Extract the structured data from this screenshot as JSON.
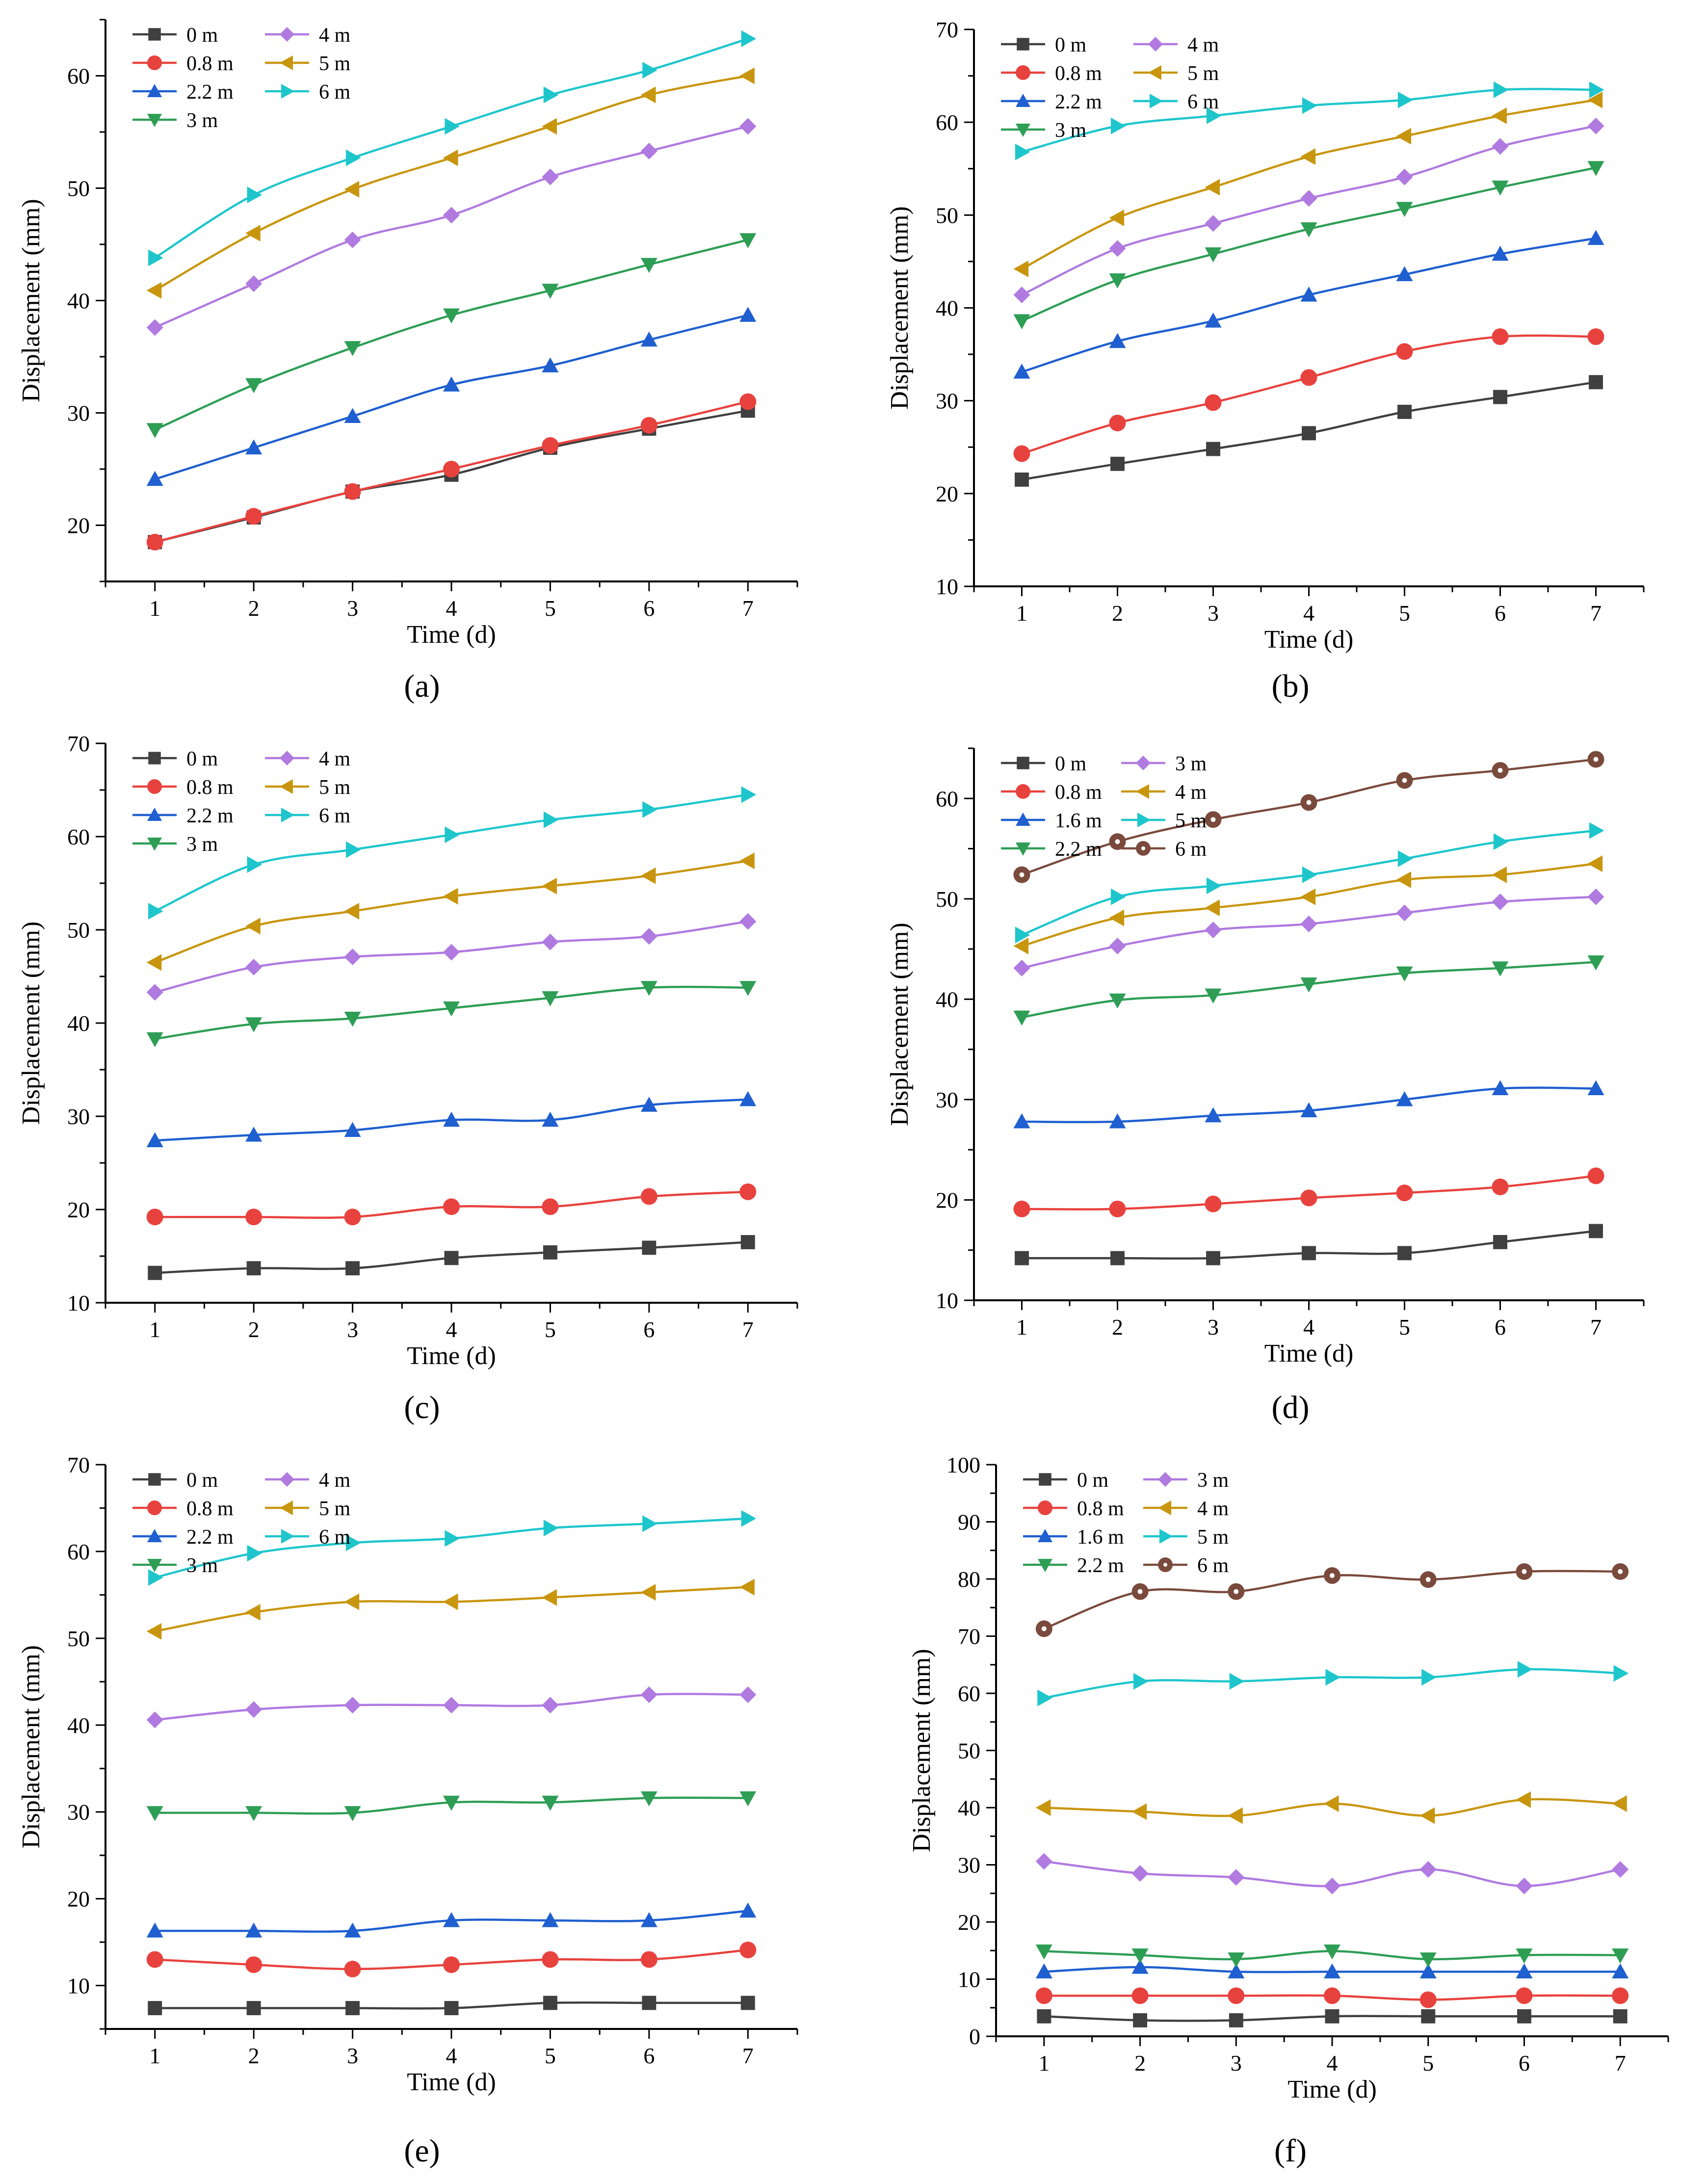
{
  "figure": {
    "panels": [
      "a",
      "b",
      "c",
      "d",
      "e",
      "f"
    ]
  },
  "chart_data": [
    {
      "type": "line",
      "panel": "a",
      "panel_label": "(a)",
      "xlabel": "Time (d)",
      "ylabel": "Displacement (mm)",
      "x": [
        1,
        2,
        3,
        4,
        5,
        6,
        7
      ],
      "xlim": [
        0.5,
        7.5
      ],
      "ylim": [
        15,
        65
      ],
      "xticks": [
        1,
        2,
        3,
        4,
        5,
        6,
        7
      ],
      "yticks": [
        20,
        30,
        40,
        50,
        60
      ],
      "legend_position": "top-left",
      "series": [
        {
          "name": "0 m",
          "color": "#404040",
          "marker": "square",
          "values": [
            18.5,
            20.7,
            23.0,
            24.5,
            26.9,
            28.6,
            30.2
          ]
        },
        {
          "name": "0.8 m",
          "color": "#e8423e",
          "marker": "circle",
          "values": [
            18.5,
            20.8,
            23.0,
            25.0,
            27.1,
            28.9,
            31.0
          ]
        },
        {
          "name": "2.2 m",
          "color": "#1f5fd0",
          "marker": "triangle-up",
          "values": [
            24.1,
            26.9,
            29.7,
            32.5,
            34.2,
            36.5,
            38.7
          ]
        },
        {
          "name": "3 m",
          "color": "#2e9e55",
          "marker": "triangle-down",
          "values": [
            28.5,
            32.5,
            35.8,
            38.7,
            40.9,
            43.2,
            45.4
          ]
        },
        {
          "name": "4 m",
          "color": "#b07ae0",
          "marker": "diamond",
          "values": [
            37.6,
            41.5,
            45.4,
            47.6,
            51.0,
            53.3,
            55.5
          ]
        },
        {
          "name": "5 m",
          "color": "#c8960e",
          "marker": "triangle-left",
          "values": [
            40.9,
            46.0,
            49.9,
            52.7,
            55.5,
            58.3,
            60.0
          ]
        },
        {
          "name": "6 m",
          "color": "#1ec6cc",
          "marker": "triangle-right",
          "values": [
            43.8,
            49.4,
            52.7,
            55.5,
            58.3,
            60.5,
            63.3
          ]
        }
      ]
    },
    {
      "type": "line",
      "panel": "b",
      "panel_label": "(b)",
      "xlabel": "Time (d)",
      "ylabel": "Displacement (mm)",
      "x": [
        1,
        2,
        3,
        4,
        5,
        6,
        7
      ],
      "xlim": [
        0.5,
        7.5
      ],
      "ylim": [
        10,
        70
      ],
      "xticks": [
        1,
        2,
        3,
        4,
        5,
        6,
        7
      ],
      "yticks": [
        10,
        20,
        30,
        40,
        50,
        60,
        70
      ],
      "legend_position": "top-left",
      "series": [
        {
          "name": "0 m",
          "color": "#404040",
          "marker": "square",
          "values": [
            21.5,
            23.2,
            24.8,
            26.5,
            28.8,
            30.4,
            32.0
          ]
        },
        {
          "name": "0.8 m",
          "color": "#e8423e",
          "marker": "circle",
          "values": [
            24.3,
            27.6,
            29.8,
            32.5,
            35.3,
            36.9,
            36.9
          ]
        },
        {
          "name": "2.2 m",
          "color": "#1f5fd0",
          "marker": "triangle-up",
          "values": [
            33.1,
            36.4,
            38.6,
            41.4,
            43.6,
            45.8,
            47.5
          ]
        },
        {
          "name": "3 m",
          "color": "#2e9e55",
          "marker": "triangle-down",
          "values": [
            38.6,
            43.0,
            45.8,
            48.5,
            50.7,
            53.0,
            55.1
          ]
        },
        {
          "name": "4 m",
          "color": "#b07ae0",
          "marker": "diamond",
          "values": [
            41.4,
            46.4,
            49.1,
            51.8,
            54.1,
            57.4,
            59.6
          ]
        },
        {
          "name": "5 m",
          "color": "#c8960e",
          "marker": "triangle-left",
          "values": [
            44.2,
            49.7,
            53.0,
            56.3,
            58.5,
            60.7,
            62.4
          ]
        },
        {
          "name": "6 m",
          "color": "#1ec6cc",
          "marker": "triangle-right",
          "values": [
            56.8,
            59.6,
            60.7,
            61.8,
            62.4,
            63.5,
            63.5
          ]
        }
      ]
    },
    {
      "type": "line",
      "panel": "c",
      "panel_label": "(c)",
      "xlabel": "Time (d)",
      "ylabel": "Displacement (mm)",
      "x": [
        1,
        2,
        3,
        4,
        5,
        6,
        7
      ],
      "xlim": [
        0.5,
        7.5
      ],
      "ylim": [
        10,
        70
      ],
      "xticks": [
        1,
        2,
        3,
        4,
        5,
        6,
        7
      ],
      "yticks": [
        10,
        20,
        30,
        40,
        50,
        60,
        70
      ],
      "legend_position": "top-left",
      "series": [
        {
          "name": "0 m",
          "color": "#404040",
          "marker": "square",
          "values": [
            13.2,
            13.7,
            13.7,
            14.8,
            15.4,
            15.9,
            16.5
          ]
        },
        {
          "name": "0.8 m",
          "color": "#e8423e",
          "marker": "circle",
          "values": [
            19.2,
            19.2,
            19.2,
            20.3,
            20.3,
            21.4,
            21.9
          ]
        },
        {
          "name": "2.2 m",
          "color": "#1f5fd0",
          "marker": "triangle-up",
          "values": [
            27.4,
            28.0,
            28.5,
            29.6,
            29.6,
            31.2,
            31.8
          ]
        },
        {
          "name": "3 m",
          "color": "#2e9e55",
          "marker": "triangle-down",
          "values": [
            38.3,
            39.9,
            40.5,
            41.6,
            42.7,
            43.8,
            43.8
          ]
        },
        {
          "name": "4 m",
          "color": "#b07ae0",
          "marker": "diamond",
          "values": [
            43.3,
            46.0,
            47.1,
            47.6,
            48.7,
            49.3,
            50.9
          ]
        },
        {
          "name": "5 m",
          "color": "#c8960e",
          "marker": "triangle-left",
          "values": [
            46.5,
            50.4,
            52.0,
            53.6,
            54.7,
            55.8,
            57.4
          ]
        },
        {
          "name": "6 m",
          "color": "#1ec6cc",
          "marker": "triangle-right",
          "values": [
            52.0,
            57.0,
            58.6,
            60.2,
            61.8,
            62.9,
            64.5
          ]
        }
      ]
    },
    {
      "type": "line",
      "panel": "d",
      "panel_label": "(d)",
      "xlabel": "Time (d)",
      "ylabel": "Displacement (mm)",
      "x": [
        1,
        2,
        3,
        4,
        5,
        6,
        7
      ],
      "xlim": [
        0.5,
        7.5
      ],
      "ylim": [
        10,
        65
      ],
      "xticks": [
        1,
        2,
        3,
        4,
        5,
        6,
        7
      ],
      "yticks": [
        10,
        20,
        30,
        40,
        50,
        60
      ],
      "legend_position": "top-left",
      "series": [
        {
          "name": "0 m",
          "color": "#404040",
          "marker": "square",
          "values": [
            14.2,
            14.2,
            14.2,
            14.7,
            14.7,
            15.8,
            16.9
          ]
        },
        {
          "name": "0.8 m",
          "color": "#e8423e",
          "marker": "circle",
          "values": [
            19.1,
            19.1,
            19.6,
            20.2,
            20.7,
            21.3,
            22.4
          ]
        },
        {
          "name": "1.6 m",
          "color": "#1f5fd0",
          "marker": "triangle-up",
          "values": [
            27.8,
            27.8,
            28.4,
            28.9,
            30.0,
            31.1,
            31.1
          ]
        },
        {
          "name": "2.2 m",
          "color": "#2e9e55",
          "marker": "triangle-down",
          "values": [
            38.2,
            39.9,
            40.4,
            41.5,
            42.6,
            43.1,
            43.7
          ]
        },
        {
          "name": "3 m",
          "color": "#b07ae0",
          "marker": "diamond",
          "values": [
            43.1,
            45.3,
            46.9,
            47.5,
            48.6,
            49.7,
            50.2
          ]
        },
        {
          "name": "4 m",
          "color": "#c8960e",
          "marker": "triangle-left",
          "values": [
            45.3,
            48.1,
            49.1,
            50.2,
            51.9,
            52.4,
            53.5
          ]
        },
        {
          "name": "5 m",
          "color": "#1ec6cc",
          "marker": "triangle-right",
          "values": [
            46.4,
            50.2,
            51.3,
            52.4,
            54.0,
            55.7,
            56.8
          ]
        },
        {
          "name": "6 m",
          "color": "#7a4a3c",
          "marker": "circle-dot",
          "values": [
            52.4,
            55.7,
            57.9,
            59.6,
            61.8,
            62.8,
            63.9
          ]
        }
      ]
    },
    {
      "type": "line",
      "panel": "e",
      "panel_label": "(e)",
      "xlabel": "Time (d)",
      "ylabel": "Displacement (mm)",
      "x": [
        1,
        2,
        3,
        4,
        5,
        6,
        7
      ],
      "xlim": [
        0.5,
        7.5
      ],
      "ylim": [
        5,
        70
      ],
      "xticks": [
        1,
        2,
        3,
        4,
        5,
        6,
        7
      ],
      "yticks": [
        10,
        20,
        30,
        40,
        50,
        60,
        70
      ],
      "legend_position": "top-left",
      "series": [
        {
          "name": "0 m",
          "color": "#404040",
          "marker": "square",
          "values": [
            7.4,
            7.4,
            7.4,
            7.4,
            8.0,
            8.0,
            8.0
          ]
        },
        {
          "name": "0.8 m",
          "color": "#e8423e",
          "marker": "circle",
          "values": [
            13.0,
            12.4,
            11.9,
            12.4,
            13.0,
            13.0,
            14.1
          ]
        },
        {
          "name": "2.2 m",
          "color": "#1f5fd0",
          "marker": "triangle-up",
          "values": [
            16.3,
            16.3,
            16.3,
            17.5,
            17.5,
            17.5,
            18.6
          ]
        },
        {
          "name": "3 m",
          "color": "#2e9e55",
          "marker": "triangle-down",
          "values": [
            29.9,
            29.9,
            29.9,
            31.1,
            31.1,
            31.6,
            31.6
          ]
        },
        {
          "name": "4 m",
          "color": "#b07ae0",
          "marker": "diamond",
          "values": [
            40.6,
            41.8,
            42.3,
            42.3,
            42.3,
            43.5,
            43.5
          ]
        },
        {
          "name": "5 m",
          "color": "#c8960e",
          "marker": "triangle-left",
          "values": [
            50.8,
            53.0,
            54.2,
            54.2,
            54.7,
            55.3,
            55.9
          ]
        },
        {
          "name": "6 m",
          "color": "#1ec6cc",
          "marker": "triangle-right",
          "values": [
            57.0,
            59.8,
            61.0,
            61.5,
            62.7,
            63.2,
            63.8
          ]
        }
      ]
    },
    {
      "type": "line",
      "panel": "f",
      "panel_label": "(f)",
      "xlabel": "Time (d)",
      "ylabel": "Displacement (mm)",
      "x": [
        1,
        2,
        3,
        4,
        5,
        6,
        7
      ],
      "xlim": [
        0.5,
        7.5
      ],
      "ylim": [
        0,
        100
      ],
      "xticks": [
        1,
        2,
        3,
        4,
        5,
        6,
        7
      ],
      "yticks": [
        0,
        10,
        20,
        30,
        40,
        50,
        60,
        70,
        80,
        90,
        100
      ],
      "legend_position": "top-left",
      "series": [
        {
          "name": "0 m",
          "color": "#404040",
          "marker": "square",
          "values": [
            3.5,
            2.8,
            2.8,
            3.5,
            3.5,
            3.5,
            3.5
          ]
        },
        {
          "name": "0.8 m",
          "color": "#e8423e",
          "marker": "circle",
          "values": [
            7.1,
            7.1,
            7.1,
            7.1,
            6.4,
            7.1,
            7.1
          ]
        },
        {
          "name": "1.6 m",
          "color": "#1f5fd0",
          "marker": "triangle-up",
          "values": [
            11.3,
            12.1,
            11.3,
            11.3,
            11.3,
            11.3,
            11.3
          ]
        },
        {
          "name": "2.2 m",
          "color": "#2e9e55",
          "marker": "triangle-down",
          "values": [
            14.9,
            14.2,
            13.5,
            14.9,
            13.5,
            14.2,
            14.2
          ]
        },
        {
          "name": "3 m",
          "color": "#b07ae0",
          "marker": "diamond",
          "values": [
            30.6,
            28.5,
            27.8,
            26.3,
            29.2,
            26.3,
            29.2
          ]
        },
        {
          "name": "4 m",
          "color": "#c8960e",
          "marker": "triangle-left",
          "values": [
            40.0,
            39.3,
            38.6,
            40.7,
            38.6,
            41.4,
            40.7
          ]
        },
        {
          "name": "5 m",
          "color": "#1ec6cc",
          "marker": "triangle-right",
          "values": [
            59.2,
            62.1,
            62.1,
            62.8,
            62.8,
            64.2,
            63.5
          ]
        },
        {
          "name": "6 m",
          "color": "#7a4a3c",
          "marker": "circle-dot",
          "values": [
            71.3,
            77.8,
            77.8,
            80.6,
            79.9,
            81.3,
            81.3
          ]
        }
      ]
    }
  ]
}
